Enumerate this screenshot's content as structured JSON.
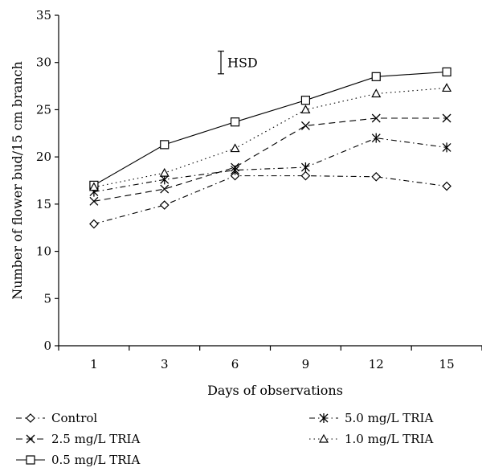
{
  "chart_data": {
    "type": "line",
    "xlabel": "Days of observations",
    "ylabel": "Number of flower bud/15 cm branch",
    "categories": [
      "1",
      "3",
      "6",
      "9",
      "12",
      "15"
    ],
    "ylim": [
      0,
      35
    ],
    "yticks": [
      0,
      5,
      10,
      15,
      20,
      25,
      30,
      35
    ],
    "grid": false,
    "legend_position": "bottom",
    "annotation": {
      "label": "HSD",
      "x": 1.8,
      "y_low": 28.8,
      "y_high": 31.2
    },
    "series": [
      {
        "name": "Control",
        "marker": "diamond",
        "dash": "dashdot",
        "values": [
          12.9,
          14.9,
          18.0,
          18.0,
          17.9,
          16.9
        ]
      },
      {
        "name": "2.5 mg/L TRIA",
        "marker": "x",
        "dash": "dashed",
        "values": [
          15.3,
          16.6,
          18.9,
          23.3,
          24.1,
          24.1
        ]
      },
      {
        "name": "0.5 mg/L TRIA",
        "marker": "square",
        "dash": "solid",
        "values": [
          17.0,
          21.3,
          23.7,
          26.0,
          28.5,
          29.0
        ]
      },
      {
        "name": "5.0 mg/L TRIA",
        "marker": "asterisk",
        "dash": "dashdot",
        "values": [
          16.3,
          17.6,
          18.6,
          18.9,
          22.0,
          21.0
        ]
      },
      {
        "name": "1.0 mg/L TRIA",
        "marker": "triangle",
        "dash": "dotted",
        "values": [
          16.8,
          18.3,
          20.9,
          25.0,
          26.7,
          27.3
        ]
      }
    ]
  }
}
